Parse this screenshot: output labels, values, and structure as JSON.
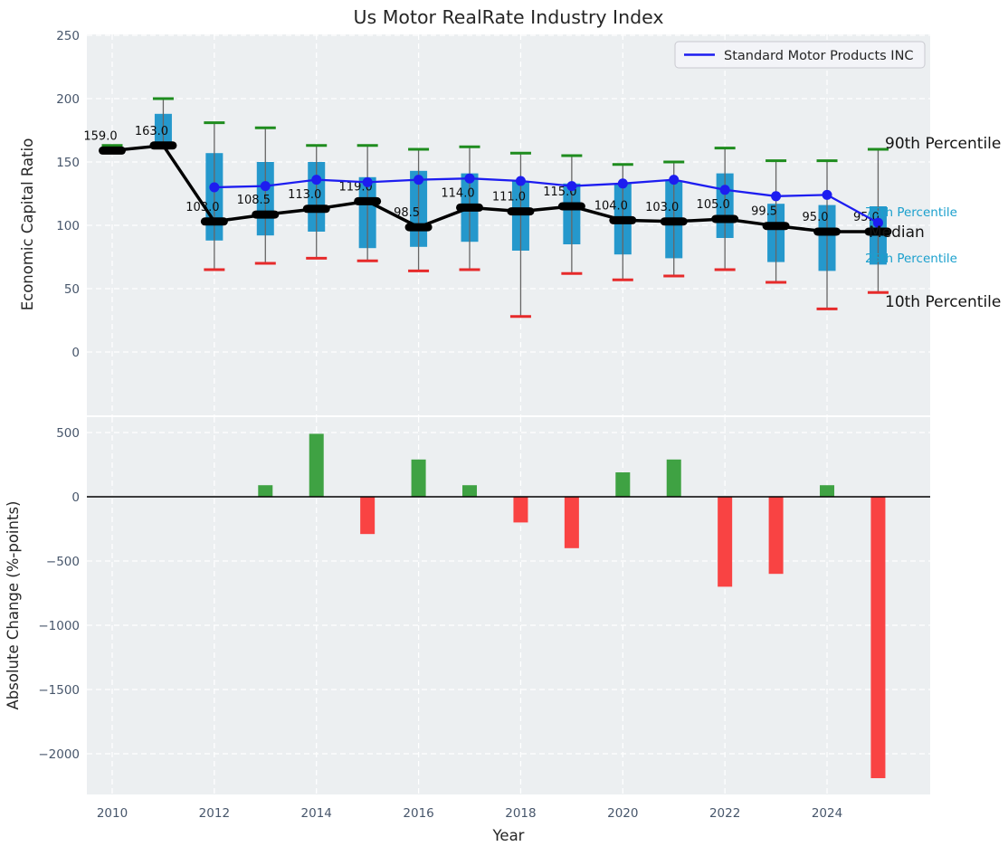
{
  "title": "Us Motor RealRate Industry Index",
  "legend": {
    "label": "Standard Motor Products INC"
  },
  "top_chart": {
    "ylabel": "Economic Capital Ratio",
    "yticks": [
      250,
      200,
      150,
      100,
      50,
      0
    ],
    "annotations": {
      "p90": "90th Percentile",
      "p75": "75th Percentile",
      "median": "Median",
      "p25": "25th Percentile",
      "p10": "10th Percentile"
    }
  },
  "bottom_chart": {
    "ylabel": "Absolute Change (%-points)",
    "xlabel": "Year",
    "yticks": [
      500,
      0,
      -500,
      -1000,
      -1500,
      -2000
    ],
    "xticks": [
      2010,
      2012,
      2014,
      2016,
      2018,
      2020,
      2022,
      2024
    ]
  },
  "colors": {
    "plot_bg": "#eceff1",
    "grid": "#ffffff",
    "box_fill": "#2598cc",
    "whisker": "#666666",
    "cap_90": "#1e8c1e",
    "cap_10": "#e62a2a",
    "median_line": "#000000",
    "company_line": "#1d1df0",
    "bar_positive": "#3fa243",
    "bar_negative": "#f94343",
    "tick_text": "#47566b",
    "annotation_cyan": "#1ba0cd",
    "zero_line": "#000000"
  },
  "chart_data": [
    {
      "type": "boxplot-line",
      "title": "Us Motor RealRate Industry Index",
      "ylabel": "Economic Capital Ratio",
      "ylim": [
        -47,
        251
      ],
      "grid": true,
      "x": [
        2010,
        2011,
        2012,
        2013,
        2014,
        2015,
        2016,
        2017,
        2018,
        2019,
        2020,
        2021,
        2022,
        2023,
        2024,
        2025
      ],
      "median": [
        159.0,
        163.0,
        103.0,
        108.5,
        113.0,
        119.0,
        98.5,
        114.0,
        111.0,
        115.0,
        104.0,
        103.0,
        105.0,
        99.5,
        95.0,
        95.0
      ],
      "median_labels": [
        "159.0",
        "163.0",
        "103.0",
        "108.5",
        "113.0",
        "119.0",
        "98.5",
        "114.0",
        "111.0",
        "115.0",
        "104.0",
        "103.0",
        "105.0",
        "99.5",
        "95.0",
        "95.0"
      ],
      "p90": [
        163,
        200,
        181,
        177,
        163,
        163,
        160,
        162,
        157,
        155,
        148,
        150,
        161,
        151,
        151,
        160
      ],
      "p75": [
        null,
        188,
        157,
        150,
        150,
        138,
        143,
        141,
        135,
        133,
        133,
        135,
        141,
        117,
        116,
        115
      ],
      "p25": [
        null,
        166,
        88,
        92,
        95,
        82,
        83,
        87,
        80,
        85,
        77,
        74,
        90,
        71,
        64,
        69
      ],
      "p10": [
        null,
        null,
        65,
        70,
        74,
        72,
        64,
        65,
        28,
        62,
        57,
        60,
        65,
        55,
        34,
        47
      ],
      "series": [
        {
          "name": "Standard Motor Products INC",
          "x": [
            2012,
            2013,
            2014,
            2015,
            2016,
            2017,
            2018,
            2019,
            2020,
            2021,
            2022,
            2023,
            2024,
            2025
          ],
          "values": [
            130,
            131,
            136,
            134,
            136,
            137,
            135,
            131,
            133,
            136,
            128,
            123,
            124,
            102
          ]
        }
      ],
      "legend_position": "upper right"
    },
    {
      "type": "bar",
      "ylabel": "Absolute Change (%-points)",
      "xlabel": "Year",
      "ylim": [
        -2320,
        620
      ],
      "grid": true,
      "x": [
        2013,
        2014,
        2015,
        2016,
        2017,
        2018,
        2019,
        2020,
        2021,
        2022,
        2023,
        2024,
        2025
      ],
      "values": [
        90,
        490,
        -290,
        290,
        90,
        -200,
        -400,
        190,
        290,
        -700,
        -600,
        90,
        -2190
      ]
    }
  ]
}
